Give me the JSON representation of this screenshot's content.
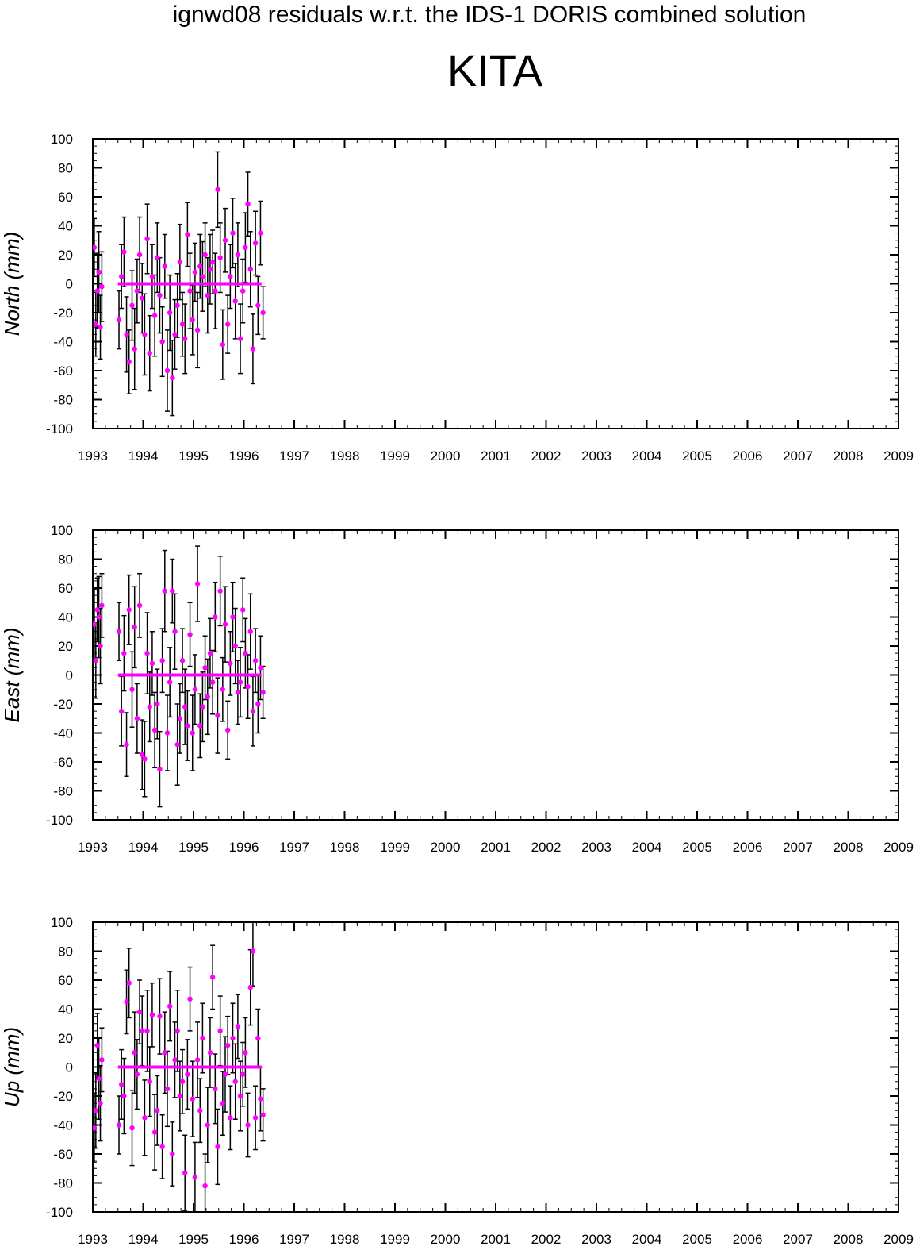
{
  "title": "ignwd08 residuals w.r.t. the IDS-1 DORIS combined solution",
  "station": "KITA",
  "colors": {
    "marker": "#ff00ff",
    "errorbar": "#000000",
    "axis": "#000000",
    "zero_line": "#ff00ff"
  },
  "chart_data": [
    {
      "type": "scatter",
      "ylabel": "North (mm)",
      "xlim": [
        1993,
        2009
      ],
      "ylim": [
        -100,
        100
      ],
      "x_ticks": [
        "1993",
        "1994",
        "1995",
        "1996",
        "1997",
        "1998",
        "1999",
        "2000",
        "2001",
        "2002",
        "2003",
        "2004",
        "2005",
        "2006",
        "2007",
        "2008",
        "2009"
      ],
      "y_ticks": [
        "100",
        "80",
        "60",
        "40",
        "20",
        "0",
        "-20",
        "-40",
        "-60",
        "-80",
        "-100"
      ],
      "zero_line": [
        1993.5,
        1996.35
      ],
      "series": [
        {
          "x": [
            1993.03,
            1993.06,
            1993.09,
            1993.12,
            1993.15,
            1993.18,
            1993.52,
            1993.57,
            1993.62,
            1993.67,
            1993.72,
            1993.78,
            1993.83,
            1993.88,
            1993.93,
            1993.98,
            1994.03,
            1994.08,
            1994.13,
            1994.18,
            1994.23,
            1994.28,
            1994.33,
            1994.38,
            1994.43,
            1994.48,
            1994.53,
            1994.58,
            1994.63,
            1994.68,
            1994.73,
            1994.78,
            1994.83,
            1994.88,
            1994.93,
            1994.98,
            1995.03,
            1995.08,
            1995.13,
            1995.18,
            1995.23,
            1995.28,
            1995.33,
            1995.38,
            1995.43,
            1995.48,
            1995.53,
            1995.58,
            1995.63,
            1995.68,
            1995.73,
            1995.78,
            1995.83,
            1995.88,
            1995.93,
            1995.98,
            1996.03,
            1996.08,
            1996.13,
            1996.18,
            1996.23,
            1996.28,
            1996.33,
            1996.38
          ],
          "y": [
            25,
            -28,
            -5,
            8,
            -30,
            -2,
            -25,
            5,
            22,
            -35,
            -54,
            -15,
            -45,
            -5,
            20,
            -10,
            -35,
            31,
            -48,
            5,
            -22,
            18,
            -8,
            -40,
            12,
            -60,
            -20,
            -65,
            -35,
            -15,
            15,
            -28,
            -38,
            34,
            -5,
            -25,
            8,
            -32,
            12,
            5,
            20,
            -8,
            10,
            15,
            -5,
            65,
            18,
            -42,
            30,
            -28,
            5,
            35,
            -12,
            20,
            -38,
            -5,
            25,
            55,
            10,
            -45,
            28,
            -15,
            35,
            -20
          ],
          "err": [
            20,
            22,
            26,
            28,
            22,
            24,
            20,
            22,
            24,
            26,
            22,
            24,
            28,
            22,
            26,
            24,
            28,
            24,
            26,
            22,
            28,
            24,
            26,
            24,
            22,
            28,
            26,
            26,
            24,
            22,
            26,
            22,
            24,
            22,
            26,
            24,
            20,
            26,
            22,
            24,
            22,
            26,
            24,
            22,
            26,
            26,
            24,
            24,
            22,
            20,
            22,
            24,
            26,
            22,
            24,
            22,
            24,
            22,
            26,
            24,
            22,
            20,
            22,
            18
          ]
        }
      ]
    },
    {
      "type": "scatter",
      "ylabel": "East (mm)",
      "xlim": [
        1993,
        2009
      ],
      "ylim": [
        -100,
        100
      ],
      "x_ticks": [
        "1993",
        "1994",
        "1995",
        "1996",
        "1997",
        "1998",
        "1999",
        "2000",
        "2001",
        "2002",
        "2003",
        "2004",
        "2005",
        "2006",
        "2007",
        "2008",
        "2009"
      ],
      "y_ticks": [
        "100",
        "80",
        "60",
        "40",
        "20",
        "0",
        "-20",
        "-40",
        "-60",
        "-80",
        "-100"
      ],
      "zero_line": [
        1993.5,
        1996.35
      ],
      "series": [
        {
          "x": [
            1993.03,
            1993.06,
            1993.09,
            1993.12,
            1993.15,
            1993.18,
            1993.52,
            1993.57,
            1993.62,
            1993.67,
            1993.72,
            1993.78,
            1993.83,
            1993.88,
            1993.93,
            1993.98,
            1994.03,
            1994.08,
            1994.13,
            1994.18,
            1994.23,
            1994.28,
            1994.33,
            1994.38,
            1994.43,
            1994.48,
            1994.53,
            1994.58,
            1994.63,
            1994.68,
            1994.73,
            1994.78,
            1994.83,
            1994.88,
            1994.93,
            1994.98,
            1995.03,
            1995.08,
            1995.13,
            1995.18,
            1995.23,
            1995.28,
            1995.33,
            1995.38,
            1995.43,
            1995.48,
            1995.53,
            1995.58,
            1995.63,
            1995.68,
            1995.73,
            1995.78,
            1995.83,
            1995.88,
            1995.93,
            1995.98,
            1996.03,
            1996.08,
            1996.13,
            1996.18,
            1996.23,
            1996.28,
            1996.33,
            1996.38
          ],
          "y": [
            35,
            10,
            45,
            40,
            20,
            48,
            30,
            -25,
            15,
            -48,
            45,
            -10,
            33,
            -30,
            48,
            -55,
            -58,
            15,
            -22,
            8,
            -38,
            -20,
            -65,
            10,
            58,
            -40,
            -5,
            58,
            30,
            -48,
            -30,
            10,
            -22,
            -35,
            28,
            -40,
            -10,
            63,
            -35,
            -22,
            5,
            -15,
            15,
            -5,
            40,
            -28,
            58,
            -10,
            35,
            -38,
            8,
            40,
            20,
            -12,
            -5,
            45,
            15,
            -8,
            30,
            -25,
            10,
            -20,
            5,
            -12
          ],
          "err": [
            24,
            26,
            22,
            28,
            26,
            22,
            20,
            24,
            26,
            22,
            24,
            26,
            28,
            24,
            22,
            24,
            26,
            28,
            24,
            22,
            26,
            24,
            26,
            22,
            28,
            26,
            24,
            22,
            26,
            28,
            24,
            22,
            26,
            24,
            22,
            26,
            24,
            26,
            22,
            24,
            22,
            26,
            24,
            22,
            24,
            26,
            24,
            22,
            26,
            20,
            22,
            24,
            26,
            22,
            24,
            22,
            24,
            22,
            26,
            24,
            22,
            20,
            22,
            18
          ]
        }
      ]
    },
    {
      "type": "scatter",
      "ylabel": "Up (mm)",
      "xlim": [
        1993,
        2009
      ],
      "ylim": [
        -100,
        100
      ],
      "x_ticks": [
        "1993",
        "1994",
        "1995",
        "1996",
        "1997",
        "1998",
        "1999",
        "2000",
        "2001",
        "2002",
        "2003",
        "2004",
        "2005",
        "2006",
        "2007",
        "2008",
        "2009"
      ],
      "y_ticks": [
        "100",
        "80",
        "60",
        "40",
        "20",
        "0",
        "-20",
        "-40",
        "-60",
        "-80",
        "-100"
      ],
      "zero_line": [
        1993.5,
        1996.35
      ],
      "series": [
        {
          "x": [
            1993.03,
            1993.06,
            1993.09,
            1993.12,
            1993.15,
            1993.18,
            1993.52,
            1993.57,
            1993.62,
            1993.67,
            1993.72,
            1993.78,
            1993.83,
            1993.88,
            1993.93,
            1993.98,
            1994.03,
            1994.08,
            1994.13,
            1994.18,
            1994.23,
            1994.28,
            1994.33,
            1994.38,
            1994.43,
            1994.48,
            1994.53,
            1994.58,
            1994.63,
            1994.68,
            1994.73,
            1994.78,
            1994.83,
            1994.88,
            1994.93,
            1994.98,
            1995.03,
            1995.08,
            1995.13,
            1995.18,
            1995.23,
            1995.28,
            1995.33,
            1995.38,
            1995.43,
            1995.48,
            1995.53,
            1995.58,
            1995.63,
            1995.68,
            1995.73,
            1995.78,
            1995.83,
            1995.88,
            1995.93,
            1995.98,
            1996.03,
            1996.08,
            1996.13,
            1996.18,
            1996.23,
            1996.28,
            1996.33,
            1996.38
          ],
          "y": [
            -42,
            -30,
            15,
            -8,
            -25,
            5,
            -40,
            -12,
            -20,
            45,
            58,
            -42,
            10,
            -5,
            38,
            25,
            -35,
            25,
            -10,
            36,
            -45,
            -30,
            35,
            -55,
            10,
            -15,
            42,
            -60,
            5,
            25,
            -20,
            -10,
            -73,
            -5,
            47,
            -22,
            -76,
            5,
            -30,
            20,
            -82,
            -40,
            10,
            62,
            -15,
            -55,
            25,
            -25,
            -5,
            15,
            -35,
            20,
            -10,
            28,
            -20,
            -5,
            10,
            -40,
            55,
            80,
            -35,
            20,
            -22,
            -33
          ],
          "err": [
            24,
            26,
            22,
            28,
            26,
            22,
            20,
            24,
            26,
            22,
            24,
            26,
            28,
            24,
            22,
            24,
            26,
            28,
            24,
            22,
            26,
            24,
            26,
            22,
            28,
            26,
            24,
            22,
            26,
            28,
            24,
            22,
            26,
            24,
            22,
            26,
            24,
            26,
            22,
            24,
            22,
            26,
            24,
            22,
            24,
            26,
            24,
            22,
            26,
            20,
            22,
            24,
            26,
            22,
            24,
            22,
            24,
            22,
            26,
            24,
            22,
            20,
            22,
            18
          ]
        }
      ]
    }
  ]
}
